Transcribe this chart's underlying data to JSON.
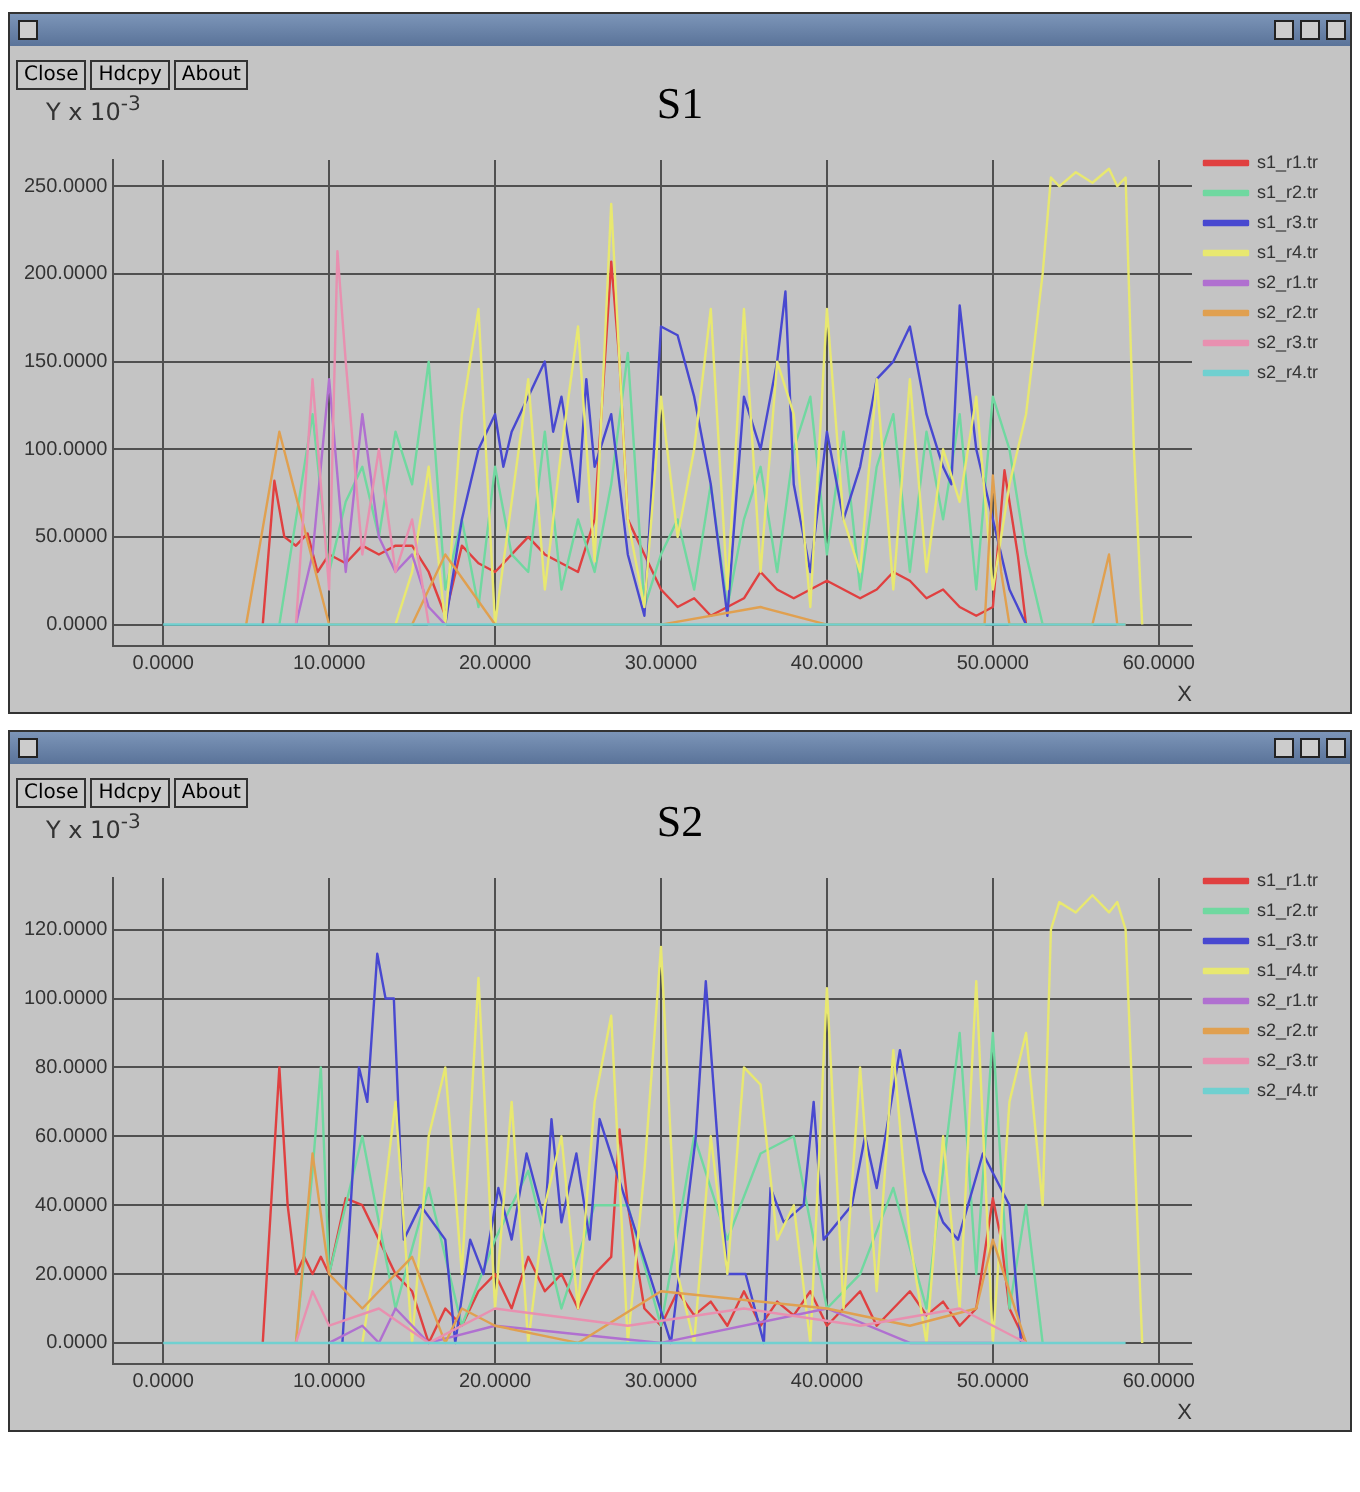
{
  "chart_data": [
    {
      "type": "line",
      "title": "S1",
      "xlabel": "X",
      "ylabel": "Y x 10$^{-3}$",
      "annotations": [
        "Close",
        "Hdcpy",
        "About"
      ],
      "grid": true,
      "legend": "right",
      "xlim": [
        -3,
        62
      ],
      "xticks": [
        {
          "value": 0,
          "label": "0.0000"
        },
        {
          "value": 10,
          "label": "10.0000"
        },
        {
          "value": 20,
          "label": "20.0000"
        },
        {
          "value": 30,
          "label": "30.0000"
        },
        {
          "value": 40,
          "label": "40.0000"
        },
        {
          "value": 50,
          "label": "50.0000"
        },
        {
          "value": 60,
          "label": "60.0000"
        }
      ],
      "ylim": [
        -12,
        265
      ],
      "yticks": [
        {
          "value": 0,
          "label": "0.0000"
        },
        {
          "value": 50,
          "label": "50.0000"
        },
        {
          "value": 100,
          "label": "100.0000"
        },
        {
          "value": 150,
          "label": "150.0000"
        },
        {
          "value": 200,
          "label": "200.0000"
        },
        {
          "value": 250,
          "label": "250.0000"
        }
      ],
      "series": [
        {
          "name": "s1_r1.tr",
          "color": "#e04040",
          "x": [
            6,
            6.7,
            7.3,
            8,
            8.7,
            9.3,
            10,
            11,
            12,
            13,
            14,
            15,
            16,
            17,
            18,
            19,
            20,
            21,
            22,
            23,
            24,
            25,
            26,
            27,
            27.5,
            28,
            29,
            30,
            31,
            32,
            33,
            34,
            35,
            36,
            37,
            38,
            39,
            40,
            41,
            42,
            43,
            44,
            45,
            46,
            47,
            48,
            49,
            50,
            50.7,
            51.5,
            52
          ],
          "values": [
            0,
            82,
            50,
            45,
            52,
            30,
            40,
            35,
            45,
            40,
            45,
            45,
            30,
            5,
            45,
            35,
            30,
            40,
            50,
            40,
            35,
            30,
            60,
            207,
            150,
            60,
            40,
            20,
            10,
            15,
            5,
            10,
            15,
            30,
            20,
            15,
            20,
            25,
            20,
            15,
            20,
            30,
            25,
            15,
            20,
            10,
            5,
            10,
            88,
            40,
            0
          ]
        },
        {
          "name": "s1_r2.tr",
          "color": "#70d8a0",
          "x": [
            7,
            8,
            9,
            10,
            11,
            12,
            13,
            14,
            15,
            16,
            17,
            18,
            19,
            20,
            21,
            22,
            23,
            24,
            25,
            26,
            27,
            28,
            29,
            30,
            31,
            32,
            33,
            34,
            35,
            36,
            37,
            38,
            39,
            40,
            41,
            42,
            43,
            44,
            45,
            46,
            47,
            48,
            49,
            50,
            51,
            52,
            53
          ],
          "values": [
            0,
            60,
            120,
            30,
            70,
            90,
            50,
            110,
            80,
            150,
            20,
            60,
            10,
            90,
            40,
            30,
            110,
            20,
            60,
            30,
            80,
            155,
            10,
            40,
            60,
            20,
            80,
            10,
            60,
            90,
            30,
            100,
            130,
            40,
            110,
            20,
            90,
            120,
            30,
            110,
            60,
            120,
            20,
            130,
            100,
            40,
            0
          ]
        },
        {
          "name": "s1_r3.tr",
          "color": "#4848d0",
          "x": [
            17,
            18,
            19,
            20,
            20.5,
            21,
            22,
            23,
            23.5,
            24,
            25,
            25.5,
            26,
            27,
            28,
            29,
            30,
            31,
            32,
            33,
            34,
            35,
            36,
            37,
            37.5,
            38,
            39,
            40,
            41,
            42,
            43,
            44,
            45,
            46,
            47,
            47.5,
            48,
            49,
            50,
            51,
            52
          ],
          "values": [
            0,
            60,
            100,
            120,
            90,
            110,
            130,
            150,
            110,
            130,
            70,
            140,
            90,
            120,
            40,
            5,
            170,
            165,
            130,
            80,
            5,
            130,
            100,
            150,
            190,
            80,
            30,
            110,
            60,
            90,
            140,
            150,
            170,
            120,
            90,
            80,
            182,
            100,
            60,
            20,
            0
          ]
        },
        {
          "name": "s1_r4.tr",
          "color": "#e8e870",
          "x": [
            14,
            15,
            16,
            17,
            18,
            19,
            20,
            21,
            22,
            23,
            24,
            25,
            26,
            27,
            28,
            29,
            30,
            31,
            32,
            33,
            34,
            35,
            36,
            37,
            38,
            39,
            40,
            41,
            42,
            43,
            44,
            45,
            46,
            47,
            48,
            49,
            50,
            51,
            52,
            53,
            53.5,
            54,
            55,
            56,
            57,
            57.5,
            58,
            58.5,
            59
          ],
          "values": [
            0,
            30,
            90,
            0,
            120,
            180,
            0,
            70,
            140,
            20,
            100,
            170,
            36,
            240,
            60,
            10,
            130,
            50,
            100,
            180,
            20,
            180,
            30,
            150,
            120,
            10,
            180,
            60,
            30,
            140,
            20,
            140,
            30,
            100,
            70,
            130,
            20,
            80,
            120,
            200,
            255,
            250,
            258,
            252,
            260,
            250,
            255,
            100,
            0
          ]
        },
        {
          "name": "s2_r1.tr",
          "color": "#b070d0",
          "x": [
            8,
            9,
            10,
            11,
            12,
            13,
            14,
            15,
            16,
            17
          ],
          "values": [
            0,
            40,
            140,
            30,
            120,
            50,
            30,
            40,
            10,
            0
          ]
        },
        {
          "name": "s2_r2.tr",
          "color": "#e0a050",
          "x": [
            5,
            7,
            10,
            15,
            17,
            20,
            30,
            36,
            40,
            45,
            49.5,
            50,
            50.5,
            51,
            56,
            57,
            57.5,
            58
          ],
          "values": [
            0,
            110,
            0,
            0,
            40,
            0,
            0,
            10,
            0,
            0,
            0,
            85,
            30,
            0,
            0,
            40,
            0,
            0
          ]
        },
        {
          "name": "s2_r3.tr",
          "color": "#e890b0",
          "x": [
            8,
            9,
            10,
            10.5,
            11,
            12,
            13,
            14,
            15,
            16,
            17
          ],
          "values": [
            0,
            140,
            20,
            213,
            150,
            40,
            100,
            30,
            60,
            0,
            0
          ]
        },
        {
          "name": "s2_r4.tr",
          "color": "#70d0d0",
          "x": [
            0,
            58
          ],
          "values": [
            0,
            0
          ]
        }
      ]
    },
    {
      "type": "line",
      "title": "S2",
      "xlabel": "X",
      "ylabel": "Y x 10$^{-3}$",
      "annotations": [
        "Close",
        "Hdcpy",
        "About"
      ],
      "grid": true,
      "legend": "right",
      "xlim": [
        -3,
        62
      ],
      "xticks": [
        {
          "value": 0,
          "label": "0.0000"
        },
        {
          "value": 10,
          "label": "10.0000"
        },
        {
          "value": 20,
          "label": "20.0000"
        },
        {
          "value": 30,
          "label": "30.0000"
        },
        {
          "value": 40,
          "label": "40.0000"
        },
        {
          "value": 50,
          "label": "50.0000"
        },
        {
          "value": 60,
          "label": "60.0000"
        }
      ],
      "ylim": [
        -6,
        135
      ],
      "yticks": [
        {
          "value": 0,
          "label": "0.0000"
        },
        {
          "value": 20,
          "label": "20.0000"
        },
        {
          "value": 40,
          "label": "40.0000"
        },
        {
          "value": 60,
          "label": "60.0000"
        },
        {
          "value": 80,
          "label": "80.0000"
        },
        {
          "value": 100,
          "label": "100.0000"
        },
        {
          "value": 120,
          "label": "120.0000"
        }
      ],
      "series": [
        {
          "name": "s1_r1.tr",
          "color": "#e04040",
          "x": [
            6,
            7,
            7.5,
            8,
            8.5,
            9,
            9.5,
            10,
            11,
            12,
            13,
            14,
            15,
            16,
            17,
            18,
            19,
            20,
            21,
            22,
            23,
            24,
            25,
            26,
            27,
            27.5,
            28,
            29,
            30,
            31,
            32,
            33,
            34,
            35,
            36,
            37,
            38,
            39,
            40,
            41,
            42,
            43,
            44,
            45,
            46,
            47,
            48,
            49,
            50,
            50.5,
            51,
            52
          ],
          "values": [
            0,
            80,
            40,
            20,
            25,
            20,
            25,
            20,
            42,
            40,
            30,
            20,
            15,
            0,
            10,
            5,
            15,
            20,
            10,
            25,
            15,
            20,
            10,
            20,
            25,
            62,
            40,
            10,
            5,
            15,
            8,
            12,
            5,
            15,
            5,
            12,
            8,
            15,
            5,
            10,
            15,
            5,
            10,
            15,
            8,
            12,
            5,
            10,
            42,
            30,
            10,
            0
          ]
        },
        {
          "name": "s1_r2.tr",
          "color": "#70d8a0",
          "x": [
            8,
            9,
            9.5,
            10,
            11,
            12,
            14,
            16,
            18,
            20,
            22,
            24,
            26,
            28,
            30,
            32,
            34,
            36,
            38,
            40,
            42,
            44,
            46,
            48,
            49,
            50,
            51,
            52,
            53
          ],
          "values": [
            0,
            50,
            80,
            20,
            40,
            60,
            10,
            45,
            5,
            30,
            50,
            10,
            40,
            40,
            5,
            60,
            30,
            55,
            60,
            10,
            20,
            45,
            10,
            90,
            20,
            90,
            10,
            40,
            0
          ]
        },
        {
          "name": "s1_r3.tr",
          "color": "#4848d0",
          "x": [
            10.8,
            11.8,
            12.3,
            12.9,
            13.4,
            13.9,
            14.5,
            15.5,
            17,
            17.6,
            18.5,
            19.3,
            20.2,
            21,
            21.9,
            23,
            23.4,
            24,
            24.9,
            25.7,
            26.3,
            29.3,
            30.6,
            32.1,
            32.7,
            34,
            35.1,
            36.2,
            36.6,
            37.4,
            38.6,
            39.2,
            39.8,
            41.5,
            42.3,
            43,
            44.4,
            45.8,
            47,
            47.9,
            49.4,
            51,
            51.7
          ],
          "values": [
            0,
            80,
            70,
            113,
            100,
            100,
            30,
            40,
            30,
            0,
            30,
            20,
            45,
            30,
            55,
            35,
            65,
            35,
            55,
            30,
            65,
            20,
            0,
            60,
            105,
            20,
            20,
            0,
            45,
            35,
            40,
            70,
            30,
            40,
            60,
            45,
            85,
            50,
            35,
            30,
            55,
            40,
            0
          ]
        },
        {
          "name": "s1_r4.tr",
          "color": "#e8e870",
          "x": [
            12,
            13,
            14,
            15,
            16,
            17,
            18,
            19,
            20,
            21,
            22,
            23,
            24,
            25,
            26,
            27,
            28,
            29,
            30,
            31,
            32,
            33,
            34,
            35,
            36,
            37,
            38,
            39,
            40,
            41,
            42,
            43,
            44,
            45,
            46,
            47,
            48,
            49,
            50,
            51,
            52,
            53,
            53.5,
            54,
            55,
            56,
            57,
            57.5,
            58,
            58.5,
            59
          ],
          "values": [
            0,
            30,
            70,
            0,
            60,
            80,
            20,
            106,
            10,
            70,
            0,
            40,
            60,
            10,
            70,
            95,
            0,
            50,
            115,
            20,
            0,
            60,
            20,
            80,
            75,
            30,
            40,
            0,
            103,
            10,
            80,
            15,
            85,
            30,
            0,
            60,
            10,
            105,
            0,
            70,
            90,
            40,
            120,
            128,
            125,
            130,
            125,
            128,
            120,
            60,
            0
          ]
        },
        {
          "name": "s2_r1.tr",
          "color": "#b070d0",
          "x": [
            10,
            12,
            13,
            14,
            16,
            20,
            30,
            40,
            45,
            50
          ],
          "values": [
            0,
            5,
            0,
            10,
            0,
            5,
            0,
            10,
            0,
            0
          ]
        },
        {
          "name": "s2_r2.tr",
          "color": "#e0a050",
          "x": [
            8,
            9,
            10,
            12,
            15,
            17,
            18,
            20,
            25,
            30,
            40,
            45,
            49,
            50,
            51,
            52
          ],
          "values": [
            0,
            55,
            20,
            10,
            25,
            0,
            10,
            5,
            0,
            15,
            10,
            5,
            10,
            30,
            15,
            0
          ]
        },
        {
          "name": "s2_r3.tr",
          "color": "#e890b0",
          "x": [
            8,
            9,
            10,
            13,
            16,
            20,
            28,
            35,
            42,
            48,
            52
          ],
          "values": [
            0,
            15,
            5,
            10,
            0,
            10,
            5,
            10,
            5,
            10,
            0
          ]
        },
        {
          "name": "s2_r4.tr",
          "color": "#70d0d0",
          "x": [
            0,
            58
          ],
          "values": [
            0,
            0
          ]
        }
      ]
    }
  ]
}
